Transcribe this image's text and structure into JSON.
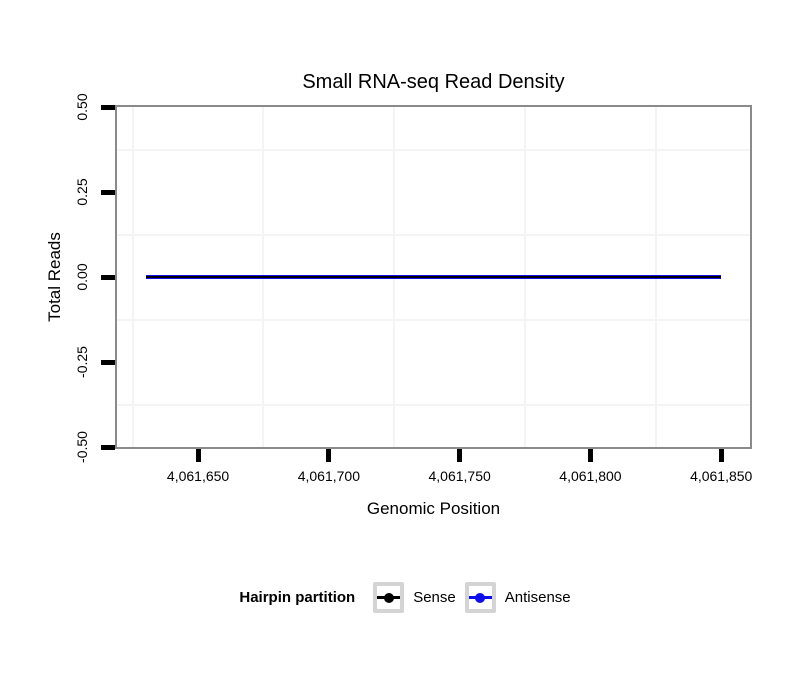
{
  "chart_data": {
    "type": "line",
    "title": "Small RNA-seq Read Density",
    "xlabel": "Genomic Position",
    "ylabel": "Total Reads",
    "xlim": [
      4061619,
      4061861
    ],
    "ylim": [
      -0.5,
      0.5
    ],
    "x_ticks": [
      {
        "value": 4061650,
        "label": "4,061,650"
      },
      {
        "value": 4061700,
        "label": "4,061,700"
      },
      {
        "value": 4061750,
        "label": "4,061,750"
      },
      {
        "value": 4061800,
        "label": "4,061,800"
      },
      {
        "value": 4061850,
        "label": "4,061,850"
      }
    ],
    "y_ticks": [
      {
        "value": 0.5,
        "label": "0.50"
      },
      {
        "value": 0.25,
        "label": "0.25"
      },
      {
        "value": 0.0,
        "label": "0.00"
      },
      {
        "value": -0.25,
        "label": "-0.25"
      },
      {
        "value": -0.5,
        "label": "-0.50"
      }
    ],
    "grid": {
      "minor_color": "#f4f4f4",
      "major_visible": false
    },
    "panel": {
      "border_color": "#8a8a8a",
      "background": "#ffffff",
      "tick_color": "#000000"
    },
    "series": [
      {
        "name": "Sense",
        "color": "#000000",
        "x": [
          4061630,
          4061850
        ],
        "y": [
          0,
          0
        ]
      },
      {
        "name": "Antisense",
        "color": "#0d0dee",
        "x": [
          4061630,
          4061850
        ],
        "y": [
          0,
          0
        ]
      }
    ],
    "legend": {
      "title": "Hairpin partition",
      "position": "bottom",
      "key_border_color": "#d4d4d4",
      "entries": [
        {
          "label": "Sense"
        },
        {
          "label": "Antisense"
        }
      ]
    }
  }
}
